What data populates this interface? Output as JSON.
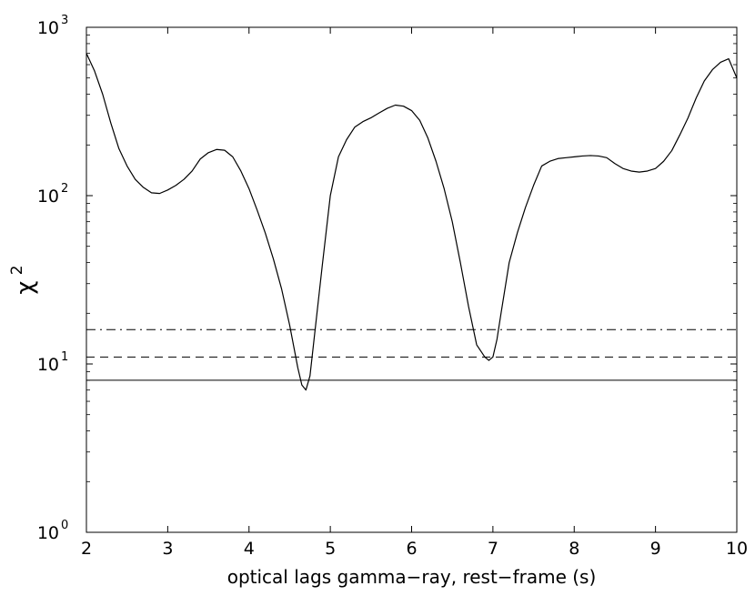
{
  "chart_data": {
    "type": "line",
    "title": "",
    "xlabel": "optical lags gamma−ray, rest−frame (s)",
    "ylabel_base": "χ",
    "ylabel_sup": "2",
    "xlim": [
      2,
      10
    ],
    "ylim": [
      1,
      1000
    ],
    "yscale": "log",
    "grid": false,
    "x_ticks": [
      2,
      3,
      4,
      5,
      6,
      7,
      8,
      9,
      10
    ],
    "x_tick_labels": [
      "2",
      "3",
      "4",
      "5",
      "6",
      "7",
      "8",
      "9",
      "10"
    ],
    "y_ticks": [
      1,
      10,
      100,
      1000
    ],
    "y_tick_labels": [
      {
        "base": "10",
        "exp": "0"
      },
      {
        "base": "10",
        "exp": "1"
      },
      {
        "base": "10",
        "exp": "2"
      },
      {
        "base": "10",
        "exp": "3"
      }
    ],
    "series": [
      {
        "style": "solid",
        "color": "#000000",
        "x": [
          2.0,
          2.1,
          2.2,
          2.3,
          2.4,
          2.5,
          2.6,
          2.7,
          2.8,
          2.9,
          3.0,
          3.1,
          3.2,
          3.3,
          3.4,
          3.5,
          3.6,
          3.7,
          3.8,
          3.9,
          4.0,
          4.1,
          4.2,
          4.3,
          4.4,
          4.5,
          4.6,
          4.65,
          4.7,
          4.75,
          4.8,
          4.9,
          5.0,
          5.1,
          5.2,
          5.3,
          5.4,
          5.5,
          5.6,
          5.7,
          5.8,
          5.9,
          6.0,
          6.1,
          6.2,
          6.3,
          6.4,
          6.5,
          6.6,
          6.7,
          6.8,
          6.9,
          6.95,
          7.0,
          7.05,
          7.1,
          7.2,
          7.3,
          7.4,
          7.5,
          7.6,
          7.7,
          7.8,
          7.9,
          8.0,
          8.1,
          8.2,
          8.3,
          8.4,
          8.5,
          8.6,
          8.7,
          8.8,
          8.9,
          9.0,
          9.1,
          9.2,
          9.3,
          9.4,
          9.5,
          9.6,
          9.7,
          9.8,
          9.9,
          10.0
        ],
        "y": [
          700,
          550,
          400,
          270,
          190,
          150,
          125,
          112,
          104,
          103,
          108,
          115,
          125,
          140,
          165,
          180,
          188,
          186,
          170,
          140,
          110,
          82,
          60,
          42,
          28,
          17,
          9.5,
          7.5,
          7.0,
          8.5,
          14,
          38,
          100,
          170,
          215,
          255,
          275,
          290,
          310,
          330,
          345,
          340,
          320,
          280,
          220,
          160,
          110,
          70,
          40,
          22,
          13,
          11,
          10.5,
          11,
          14,
          20,
          40,
          60,
          85,
          115,
          150,
          160,
          166,
          168,
          170,
          172,
          173,
          172,
          168,
          155,
          145,
          140,
          138,
          140,
          145,
          160,
          185,
          230,
          290,
          380,
          480,
          560,
          620,
          650,
          500
        ]
      }
    ],
    "reference_lines": [
      {
        "y": 16,
        "style": "dashdot",
        "color": "#000000"
      },
      {
        "y": 11,
        "style": "dashed",
        "color": "#000000"
      },
      {
        "y": 8,
        "style": "solid",
        "color": "#000000"
      }
    ]
  }
}
